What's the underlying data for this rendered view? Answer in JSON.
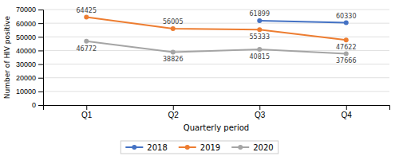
{
  "chart_data": {
    "type": "line",
    "categories": [
      "Q1",
      "Q2",
      "Q3",
      "Q4"
    ],
    "series": [
      {
        "name": "2018",
        "color": "#4472C4",
        "values": [
          null,
          null,
          61899,
          60330
        ]
      },
      {
        "name": "2019",
        "color": "#ED7D31",
        "values": [
          64425,
          56005,
          55333,
          47622
        ]
      },
      {
        "name": "2020",
        "color": "#A5A5A5",
        "values": [
          46772,
          38826,
          40815,
          37666
        ]
      }
    ],
    "x_label": "Quarterly period",
    "y_label": "Number of HIV positive",
    "ylim": [
      0,
      70000
    ],
    "yticks": [
      0,
      10000,
      20000,
      30000,
      40000,
      50000,
      60000,
      70000
    ],
    "grid": true,
    "legend": "bottom",
    "marker": "circle",
    "data_labels": true
  }
}
